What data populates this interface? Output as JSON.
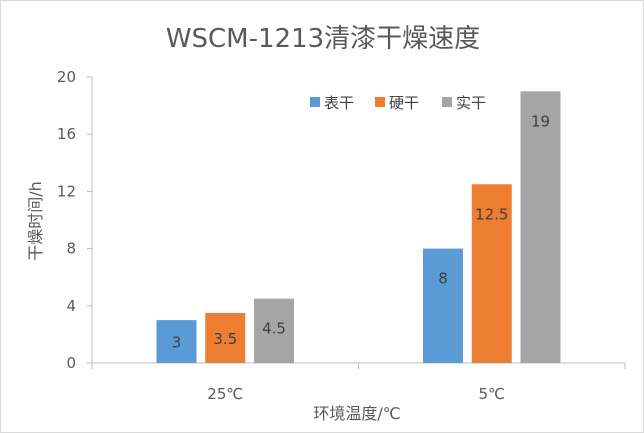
{
  "chart_data": {
    "type": "bar",
    "title": "WSCM-1213清漆干燥速度",
    "xlabel": "环境温度/℃",
    "ylabel": "干燥时间/h",
    "categories": [
      "25℃",
      "5℃"
    ],
    "series": [
      {
        "name": "表干",
        "values": [
          3,
          8
        ],
        "labels": [
          "3",
          "8"
        ],
        "color": "#5b9bd5"
      },
      {
        "name": "硬干",
        "values": [
          3.5,
          12.5
        ],
        "labels": [
          "3.5",
          "12.5"
        ],
        "color": "#ed7d31"
      },
      {
        "name": "实干",
        "values": [
          4.5,
          19
        ],
        "labels": [
          "4.5",
          "19"
        ],
        "color": "#a5a5a5"
      }
    ],
    "ylim": [
      0,
      20
    ],
    "yticks": [
      0,
      4,
      8,
      12,
      16,
      20
    ],
    "grid": false,
    "legend": "top-right",
    "axis_color": "#bfbfbf"
  }
}
